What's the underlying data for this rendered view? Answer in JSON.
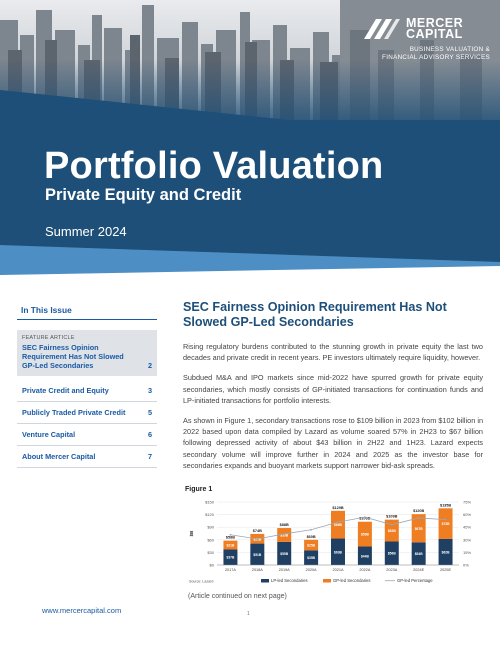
{
  "logo": {
    "name_line1": "MERCER",
    "name_line2": "CAPITAL",
    "tagline_line1": "BUSINESS VALUATION &",
    "tagline_line2": "FINANCIAL ADVISORY SERVICES"
  },
  "hero": {
    "title": "Portfolio Valuation",
    "subtitle": "Private Equity and Credit",
    "season": "Summer 2024"
  },
  "sidebar": {
    "heading": "In This Issue",
    "feature_label": "FEATURE ARTICLE",
    "feature_title": "SEC Fairness Opinion Requirement Has Not Slowed GP-Led Secondaries",
    "feature_page": "2",
    "items": [
      {
        "label": "Private Credit and Equity",
        "page": "3"
      },
      {
        "label": "Publicly Traded Private Credit",
        "page": "5"
      },
      {
        "label": "Venture Capital",
        "page": "6"
      },
      {
        "label": "About Mercer Capital",
        "page": "7"
      }
    ],
    "url": "www.mercercapital.com"
  },
  "article": {
    "title": "SEC Fairness Opinion Requirement Has Not Slowed GP-Led Secondaries",
    "paragraphs": [
      "Rising regulatory burdens contributed to the stunning growth in private equity the last two decades and private credit in recent years. PE investors ultimately require liquidity, however.",
      "Subdued M&A and IPO markets since mid-2022 have spurred growth for private equity secondaries, which mostly consists of GP-initiated transactions for continuation funds and LP-initiated transactions for portfolio interests.",
      "As shown in Figure 1, secondary transactions rose to $109 billion in 2023 from $102 billion in 2022 based upon data compiled by Lazard as volume soared 57% in 2H23 to $67 billion following depressed activity of about $43 billion in 2H22 and 1H23. Lazard expects secondary volume will improve further in 2024 and 2025 as the investor base for secondaries expands and buoyant markets support narrower bid-ask spreads."
    ],
    "figure_label": "Figure 1",
    "continued": "(Article continued on next page)",
    "page_number": "1"
  },
  "chart_data": {
    "type": "bar",
    "categories": [
      "2017A",
      "2018A",
      "2019A",
      "2020A",
      "2021A",
      "2022A",
      "2023A",
      "2024E",
      "2025E"
    ],
    "series": [
      {
        "name": "LP-led Secondaries",
        "values": [
          37,
          51,
          55,
          35,
          63,
          44,
          56,
          54,
          62
        ],
        "color": "#1f3f63"
      },
      {
        "name": "GP-led Secondaries",
        "values": [
          21,
          23,
          33,
          25,
          66,
          59,
          52,
          67,
          73
        ],
        "color": "#ef7d22"
      }
    ],
    "totals": [
      "$58B",
      "$74B",
      "$88B",
      "$60B",
      "$129B",
      "$103B",
      "$109B",
      "$120B",
      "$135B"
    ],
    "lp_labels": [
      "$37B",
      "$51B",
      "$55B",
      "$35B",
      "$63B",
      "$44B",
      "$56B",
      "$54B",
      "$62B"
    ],
    "gp_labels": [
      "$21B",
      "$23B",
      "$33B",
      "$25B",
      "$66B",
      "$59B",
      "$52B",
      "$67B",
      "$73B"
    ],
    "line": {
      "name": "GP-led Percentage",
      "values": [
        36,
        31,
        37,
        42,
        51,
        57,
        48,
        56,
        54
      ],
      "color": "#9aa7b4"
    },
    "ylabel": "$B",
    "ylim": [
      0,
      150
    ],
    "yticks": [
      "$0",
      "$30",
      "$60",
      "$90",
      "$120",
      "$150"
    ],
    "y2lim": [
      0,
      75
    ],
    "y2ticks": [
      "0%",
      "15%",
      "30%",
      "45%",
      "60%",
      "75%"
    ],
    "source": "Source: Lazard",
    "legend_position": "bottom"
  },
  "colors": {
    "brand_blue": "#1d4f78",
    "accent_blue": "#1a5aa3",
    "feature_bg": "#dfe3e8"
  }
}
